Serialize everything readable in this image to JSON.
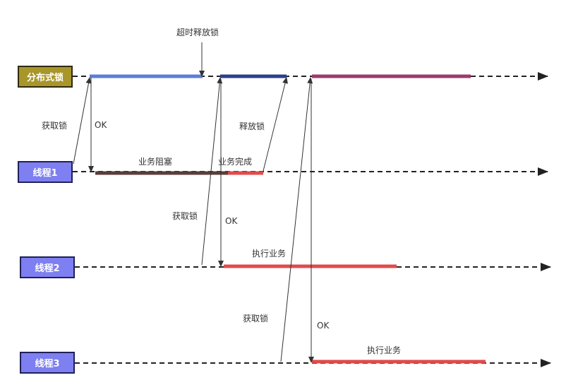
{
  "nodes": {
    "lock": "分布式锁",
    "thread1": "线程1",
    "thread2": "线程2",
    "thread3": "线程3"
  },
  "labels": {
    "timeout_release": "超时释放锁",
    "t1_acquire": "获取锁",
    "t1_ok": "OK",
    "t1_blocked": "业务阻塞",
    "t1_done": "业务完成",
    "t1_release": "释放锁",
    "t2_acquire": "获取锁",
    "t2_ok": "OK",
    "t2_exec": "执行业务",
    "t3_acquire": "获取锁",
    "t3_ok": "OK",
    "t3_exec": "执行业务"
  },
  "colors": {
    "lock_node_fill": "#a8962a",
    "thread_node_fill": "#7e7ff0",
    "lock_held_t1": "#5b7fd6",
    "lock_held_t2": "#2b3f8c",
    "lock_held_t3": "#9b3a6e",
    "blocked_bar": "#5a3e3a",
    "work_bar": "#e04c4c",
    "timeline": "#222222"
  }
}
